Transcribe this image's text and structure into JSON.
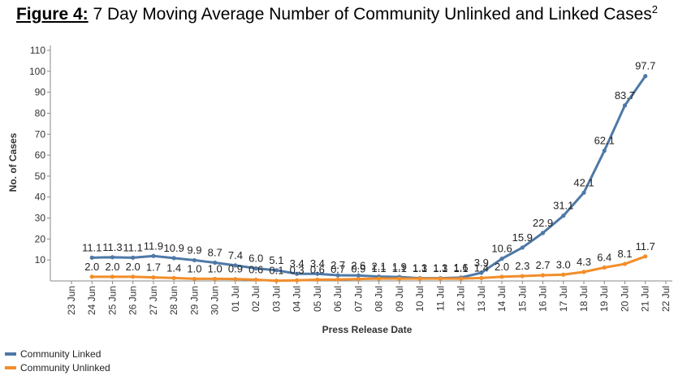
{
  "chart_data": {
    "type": "line",
    "title_prefix": "Figure 4:",
    "title": "7 Day Moving Average Number of Community Unlinked and Linked Cases",
    "title_superscript": "2",
    "xlabel": "Press Release Date",
    "ylabel": "No. of Cases",
    "ylim": [
      0,
      110
    ],
    "yticks": [
      10,
      20,
      30,
      40,
      50,
      60,
      70,
      80,
      90,
      100,
      110
    ],
    "x_axis_ticks": [
      "23 Jun",
      "24 Jun",
      "25 Jun",
      "26 Jun",
      "27 Jun",
      "28 Jun",
      "29 Jun",
      "30 Jun",
      "01 Jul",
      "02 Jul",
      "03 Jul",
      "04 Jul",
      "05 Jul",
      "06 Jul",
      "07 Jul",
      "08 Jul",
      "09 Jul",
      "10 Jul",
      "11 Jul",
      "12 Jul",
      "13 Jul",
      "14 Jul",
      "15 Jul",
      "16 Jul",
      "17 Jul",
      "18 Jul",
      "19 Jul",
      "20 Jul",
      "21 Jul",
      "22 Jul"
    ],
    "categories": [
      "24 Jun",
      "25 Jun",
      "26 Jun",
      "27 Jun",
      "28 Jun",
      "29 Jun",
      "30 Jun",
      "01 Jul",
      "02 Jul",
      "03 Jul",
      "04 Jul",
      "05 Jul",
      "06 Jul",
      "07 Jul",
      "08 Jul",
      "09 Jul",
      "10 Jul",
      "11 Jul",
      "12 Jul",
      "13 Jul",
      "14 Jul",
      "15 Jul",
      "16 Jul",
      "17 Jul",
      "18 Jul",
      "19 Jul",
      "20 Jul",
      "21 Jul"
    ],
    "series": [
      {
        "name": "Community Linked",
        "color": "#4e79a7",
        "values": [
          11.1,
          11.3,
          11.1,
          11.9,
          10.9,
          9.9,
          8.7,
          7.4,
          6.0,
          5.1,
          3.4,
          3.4,
          2.7,
          2.6,
          2.1,
          1.9,
          1.3,
          1.3,
          1.6,
          3.9,
          10.6,
          15.9,
          22.9,
          31.1,
          42.1,
          62.1,
          83.7,
          97.7
        ]
      },
      {
        "name": "Community Unlinked",
        "color": "#f28e2b",
        "values": [
          2.0,
          2.0,
          2.0,
          1.7,
          1.4,
          1.0,
          1.0,
          0.9,
          0.6,
          0.1,
          0.3,
          0.6,
          0.7,
          0.9,
          1.1,
          1.1,
          1.1,
          1.1,
          1.1,
          1.4,
          2.0,
          2.3,
          2.7,
          3.0,
          4.3,
          6.4,
          8.1,
          11.7
        ]
      }
    ],
    "grid": false,
    "legend_position": "bottom-left"
  }
}
